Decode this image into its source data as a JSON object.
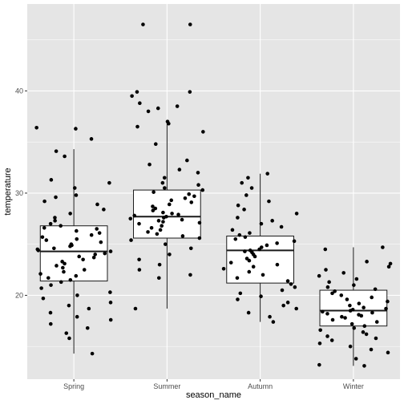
{
  "chart_data": {
    "type": "boxplot",
    "xlabel": "season_name",
    "ylabel": "temperature",
    "categories": [
      "Spring",
      "Summer",
      "Autumn",
      "Winter"
    ],
    "ylim": [
      11.8,
      48.5
    ],
    "yticks": [
      20,
      30,
      40
    ],
    "grid": true,
    "colors": {
      "panel": "#e5e5e5",
      "grid": "#ffffff",
      "box_fill": "#ffffff",
      "box_line": "#1a1a1a",
      "points": "#000000",
      "tick_text": "#4d4d4d"
    },
    "boxes": [
      {
        "category": "Spring",
        "whisker_low": 14.3,
        "q1": 21.4,
        "median": 24.3,
        "q3": 26.8,
        "whisker_high": 34.3
      },
      {
        "category": "Summer",
        "whisker_low": 18.7,
        "q1": 25.6,
        "median": 27.7,
        "q3": 30.3,
        "whisker_high": 37.0
      },
      {
        "category": "Autumn",
        "whisker_low": 17.4,
        "q1": 21.2,
        "median": 24.4,
        "q3": 25.8,
        "whisker_high": 31.9
      },
      {
        "category": "Winter",
        "whisker_low": 13.1,
        "q1": 17.0,
        "median": 18.5,
        "q3": 20.5,
        "whisker_high": 24.7
      }
    ],
    "points": [
      {
        "category": "Spring",
        "values": [
          36.4,
          36.3,
          35.3,
          34.1,
          33.6,
          31.3,
          31.0,
          30.5,
          29.8,
          29.6,
          29.2,
          28.9,
          28.4,
          28.0,
          27.6,
          27.3,
          27.0,
          26.8,
          26.6,
          26.5,
          26.3,
          26.1,
          25.9,
          25.7,
          25.5,
          25.4,
          25.2,
          25.0,
          24.9,
          24.8,
          24.6,
          24.5,
          24.4,
          24.3,
          24.1,
          24.0,
          23.8,
          23.7,
          23.5,
          23.3,
          23.1,
          22.9,
          22.7,
          22.5,
          22.3,
          22.1,
          21.9,
          21.7,
          21.5,
          21.3,
          21.0,
          20.7,
          20.3,
          20.0,
          19.7,
          19.3,
          19.0,
          18.7,
          18.3,
          17.9,
          17.6,
          17.2,
          16.8,
          16.3,
          15.8,
          14.3
        ]
      },
      {
        "category": "Summer",
        "values": [
          46.5,
          46.5,
          39.9,
          39.9,
          39.5,
          38.8,
          38.5,
          38.3,
          38.0,
          37.0,
          36.8,
          36.5,
          36.0,
          34.8,
          33.2,
          32.8,
          32.3,
          32.0,
          31.5,
          31.0,
          30.8,
          30.5,
          30.3,
          30.1,
          29.9,
          29.7,
          29.5,
          29.3,
          29.1,
          28.9,
          28.7,
          28.5,
          28.3,
          28.1,
          28.0,
          27.9,
          27.8,
          27.7,
          27.6,
          27.5,
          27.4,
          27.3,
          27.2,
          27.1,
          27.0,
          26.8,
          26.6,
          26.4,
          26.2,
          26.0,
          25.8,
          25.6,
          25.4,
          25.0,
          24.6,
          24.0,
          23.5,
          23.0,
          22.5,
          22.0,
          21.7,
          18.7
        ]
      },
      {
        "category": "Autumn",
        "values": [
          31.9,
          31.5,
          31.0,
          30.5,
          29.8,
          29.2,
          28.8,
          28.4,
          28.0,
          27.6,
          27.3,
          27.0,
          26.7,
          26.4,
          26.1,
          25.9,
          25.7,
          25.5,
          25.3,
          25.1,
          24.9,
          24.7,
          24.5,
          24.4,
          24.3,
          24.2,
          24.0,
          23.8,
          23.6,
          23.4,
          23.2,
          23.0,
          22.8,
          22.6,
          22.3,
          22.0,
          21.7,
          21.4,
          21.1,
          20.8,
          20.5,
          20.2,
          19.9,
          19.6,
          19.3,
          19.0,
          18.7,
          18.3,
          17.9,
          17.4
        ]
      },
      {
        "category": "Winter",
        "values": [
          24.7,
          24.5,
          23.3,
          23.1,
          22.8,
          22.5,
          22.2,
          21.9,
          21.6,
          21.3,
          21.0,
          20.8,
          20.6,
          20.4,
          20.2,
          20.0,
          19.8,
          19.6,
          19.4,
          19.2,
          19.0,
          18.8,
          18.7,
          18.6,
          18.5,
          18.4,
          18.3,
          18.2,
          18.1,
          18.0,
          17.9,
          17.8,
          17.6,
          17.4,
          17.2,
          17.0,
          16.8,
          16.6,
          16.4,
          16.2,
          16.0,
          15.8,
          15.6,
          15.3,
          15.0,
          14.7,
          14.4,
          13.8,
          13.2,
          13.1
        ]
      }
    ]
  }
}
